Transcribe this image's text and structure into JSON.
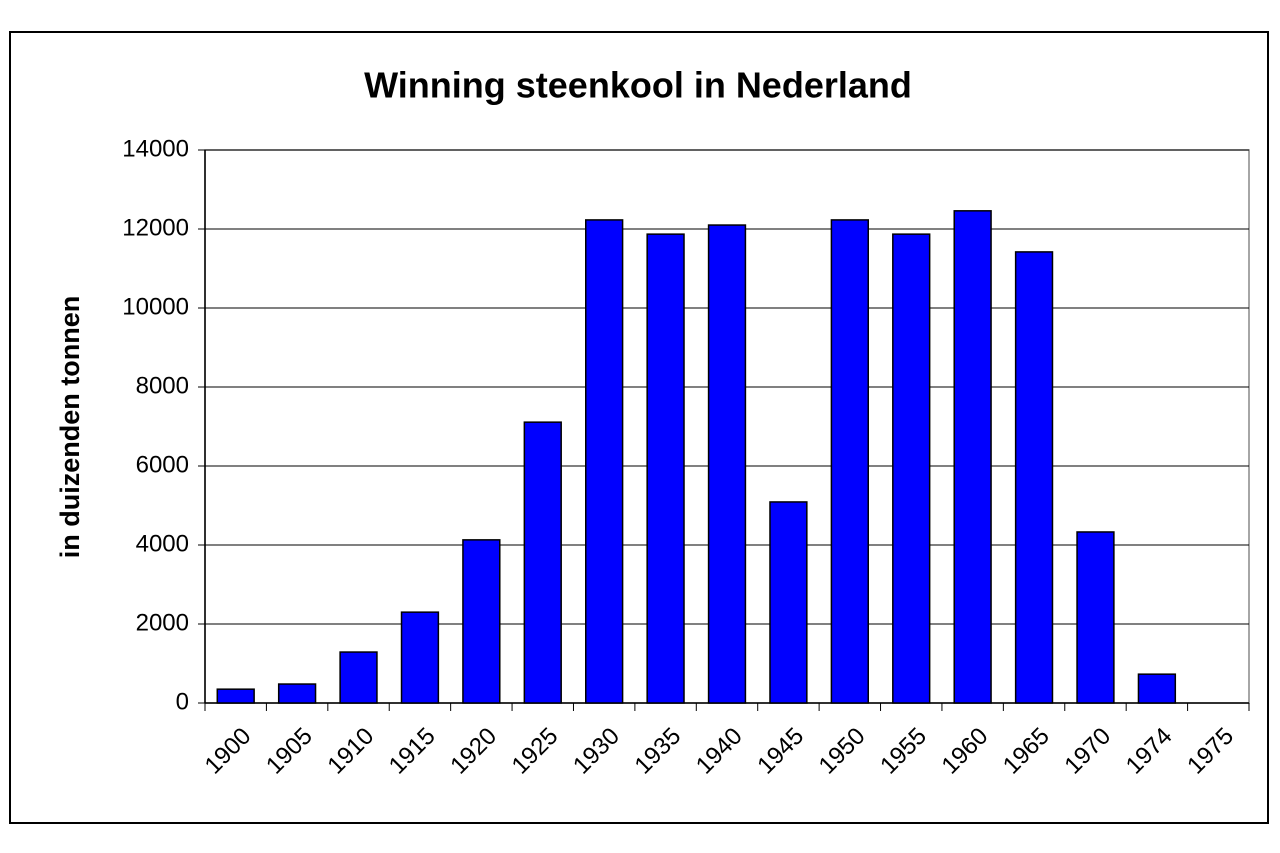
{
  "chart_data": {
    "type": "bar",
    "title": "Winning steenkool in Nederland",
    "y_label": "in duizenden tonnen",
    "categories": [
      "1900",
      "1905",
      "1910",
      "1915",
      "1920",
      "1925",
      "1930",
      "1935",
      "1940",
      "1945",
      "1950",
      "1955",
      "1960",
      "1965",
      "1970",
      "1974",
      "1975"
    ],
    "values": [
      350,
      480,
      1290,
      2300,
      4130,
      7110,
      12230,
      11870,
      12100,
      5090,
      12230,
      11870,
      12460,
      11420,
      4330,
      730,
      null
    ],
    "color": "#0000ff",
    "ylim": [
      0,
      14000
    ],
    "yticks": [
      0,
      2000,
      4000,
      6000,
      8000,
      10000,
      12000,
      14000
    ],
    "grid": true
  }
}
